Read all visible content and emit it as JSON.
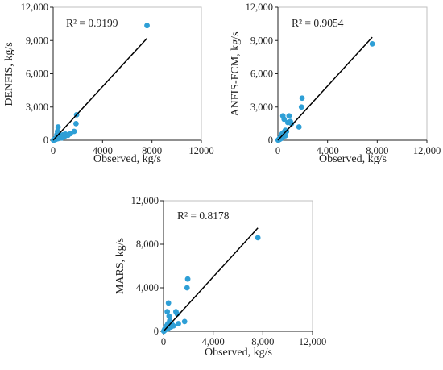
{
  "chart_data": [
    {
      "type": "scatter",
      "xlabel": "Observed, kg/s",
      "ylabel": "DENFIS, kg/s",
      "annotation": "R² = 0.9199",
      "xlim": [
        0,
        12000
      ],
      "ylim": [
        0,
        12000
      ],
      "xticks": [
        "0",
        "4000",
        "8000",
        "12000"
      ],
      "yticks": [
        "0",
        "3,000",
        "6,000",
        "9,000",
        "12,000"
      ],
      "grid": false,
      "marker_color": "#2e9fd6",
      "line_color": "#000000",
      "trendline": {
        "x": [
          0,
          7600
        ],
        "y": [
          0,
          9200
        ]
      },
      "points": [
        [
          7600,
          10350
        ],
        [
          1900,
          2300
        ],
        [
          1850,
          1500
        ],
        [
          1700,
          800
        ],
        [
          1400,
          600
        ],
        [
          1000,
          550
        ],
        [
          800,
          500
        ],
        [
          600,
          400
        ],
        [
          500,
          350
        ],
        [
          400,
          1200
        ],
        [
          350,
          800
        ],
        [
          300,
          300
        ],
        [
          250,
          200
        ],
        [
          200,
          180
        ],
        [
          150,
          120
        ],
        [
          100,
          80
        ],
        [
          80,
          60
        ],
        [
          50,
          40
        ],
        [
          30,
          30
        ],
        [
          20,
          10
        ],
        [
          400,
          150
        ],
        [
          600,
          250
        ],
        [
          700,
          200
        ],
        [
          450,
          600
        ],
        [
          300,
          500
        ],
        [
          250,
          100
        ],
        [
          150,
          50
        ],
        [
          60,
          20
        ],
        [
          900,
          300
        ],
        [
          1200,
          450
        ]
      ]
    },
    {
      "type": "scatter",
      "xlabel": "Observed, kg/s",
      "ylabel": "ANFIS-FCM, kg/s",
      "annotation": "R² = 0.9054",
      "xlim": [
        0,
        12000
      ],
      "ylim": [
        0,
        12000
      ],
      "xticks": [
        "0",
        "4,000",
        "8,000",
        "12,000"
      ],
      "yticks": [
        "0",
        "3,000",
        "6,000",
        "9,000",
        "12,000"
      ],
      "grid": false,
      "marker_color": "#2e9fd6",
      "line_color": "#000000",
      "trendline": {
        "x": [
          0,
          7600
        ],
        "y": [
          0,
          9300
        ]
      },
      "points": [
        [
          7600,
          8700
        ],
        [
          1950,
          3800
        ],
        [
          1900,
          3000
        ],
        [
          1700,
          1200
        ],
        [
          900,
          2200
        ],
        [
          1000,
          1700
        ],
        [
          800,
          1600
        ],
        [
          400,
          2200
        ],
        [
          500,
          1900
        ],
        [
          600,
          900
        ],
        [
          700,
          800
        ],
        [
          450,
          700
        ],
        [
          350,
          600
        ],
        [
          300,
          500
        ],
        [
          250,
          300
        ],
        [
          200,
          250
        ],
        [
          150,
          200
        ],
        [
          100,
          100
        ],
        [
          80,
          60
        ],
        [
          50,
          40
        ],
        [
          30,
          20
        ],
        [
          20,
          10
        ],
        [
          400,
          300
        ],
        [
          600,
          400
        ],
        [
          250,
          150
        ],
        [
          150,
          80
        ],
        [
          60,
          30
        ],
        [
          500,
          500
        ],
        [
          350,
          250
        ],
        [
          1100,
          1500
        ]
      ]
    },
    {
      "type": "scatter",
      "xlabel": "Observed, kg/s",
      "ylabel": "MARS, kg/s",
      "annotation": "R² = 0.8178",
      "xlim": [
        0,
        12000
      ],
      "ylim": [
        0,
        12000
      ],
      "xticks": [
        "0",
        "4,000",
        "8,000",
        "12,000"
      ],
      "yticks": [
        "0",
        "4,000",
        "8,000",
        "12,000"
      ],
      "grid": false,
      "marker_color": "#2e9fd6",
      "line_color": "#000000",
      "trendline": {
        "x": [
          0,
          7600
        ],
        "y": [
          0,
          9500
        ]
      },
      "points": [
        [
          7600,
          8600
        ],
        [
          1950,
          4800
        ],
        [
          1900,
          4000
        ],
        [
          1700,
          900
        ],
        [
          1000,
          1800
        ],
        [
          1100,
          1600
        ],
        [
          400,
          2600
        ],
        [
          300,
          1800
        ],
        [
          450,
          1400
        ],
        [
          500,
          1000
        ],
        [
          600,
          800
        ],
        [
          700,
          600
        ],
        [
          350,
          700
        ],
        [
          250,
          500
        ],
        [
          200,
          400
        ],
        [
          150,
          300
        ],
        [
          100,
          200
        ],
        [
          80,
          100
        ],
        [
          50,
          60
        ],
        [
          30,
          30
        ],
        [
          20,
          10
        ],
        [
          400,
          300
        ],
        [
          600,
          400
        ],
        [
          250,
          250
        ],
        [
          150,
          150
        ],
        [
          60,
          50
        ],
        [
          500,
          600
        ],
        [
          300,
          200
        ],
        [
          800,
          500
        ],
        [
          1200,
          700
        ]
      ]
    }
  ]
}
